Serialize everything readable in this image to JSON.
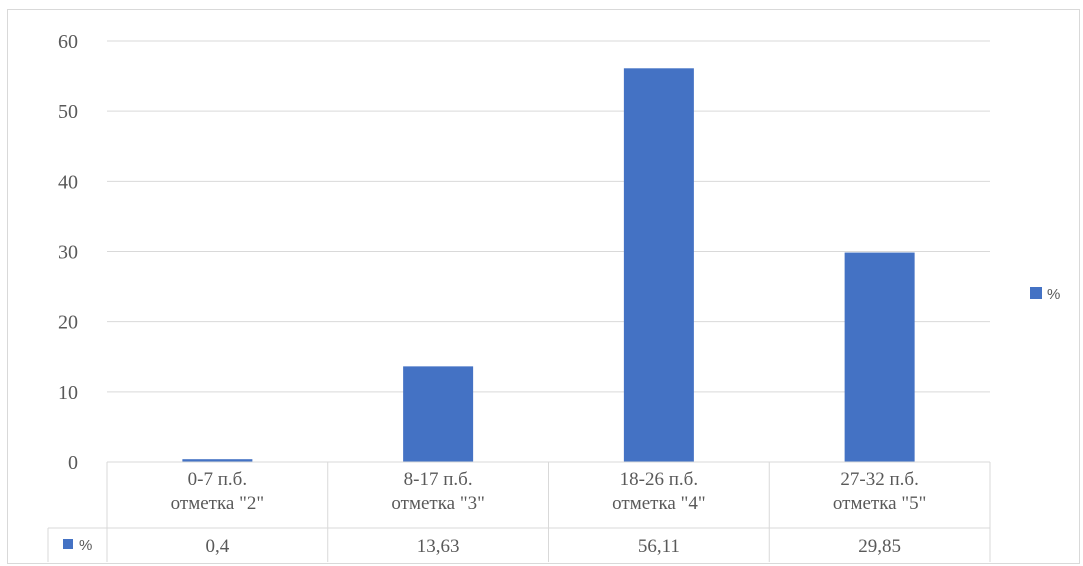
{
  "chart_data": {
    "type": "bar",
    "categories": [
      [
        "0-7 п.б.",
        "отметка \"2\""
      ],
      [
        "8-17 п.б.",
        "отметка \"3\""
      ],
      [
        "18-26 п.б.",
        "отметка \"4\""
      ],
      [
        "27-32 п.б.",
        "отметка \"5\""
      ]
    ],
    "series": [
      {
        "name": "%",
        "values": [
          0.4,
          13.63,
          56.11,
          29.85
        ],
        "color": "#4472c4"
      }
    ],
    "data_table": {
      "series_label": "%",
      "values": [
        "0,4",
        "13,63",
        "56,11",
        "29,85"
      ]
    },
    "yticks": [
      "0",
      "10",
      "20",
      "30",
      "40",
      "50",
      "60"
    ],
    "ylim": [
      0,
      60
    ],
    "grid": true,
    "legend": {
      "label": "%",
      "position": "right"
    },
    "title": "",
    "xlabel": "",
    "ylabel": ""
  }
}
